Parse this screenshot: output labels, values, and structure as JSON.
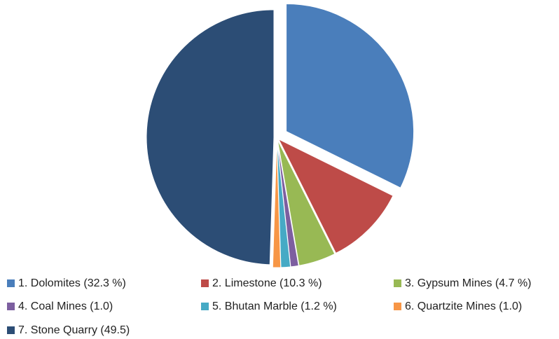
{
  "chart_data": {
    "type": "pie",
    "categories": [
      "1. Dolomites (32.3 %)",
      "2. Limestone (10.3 %)",
      "3. Gypsum Mines (4.7 %)",
      "4. Coal Mines (1.0)",
      "5. Bhutan Marble (1.2 %)",
      "6. Quartzite Mines (1.0)",
      "7.  Stone Quarry (49.5)"
    ],
    "values": [
      32.3,
      10.3,
      4.7,
      1.0,
      1.2,
      1.0,
      49.5
    ],
    "colors": [
      "#4a7ebb",
      "#be4b48",
      "#98b954",
      "#7d5fa0",
      "#46aac5",
      "#f79646",
      "#2c4d75"
    ],
    "exploded": [
      0
    ]
  }
}
